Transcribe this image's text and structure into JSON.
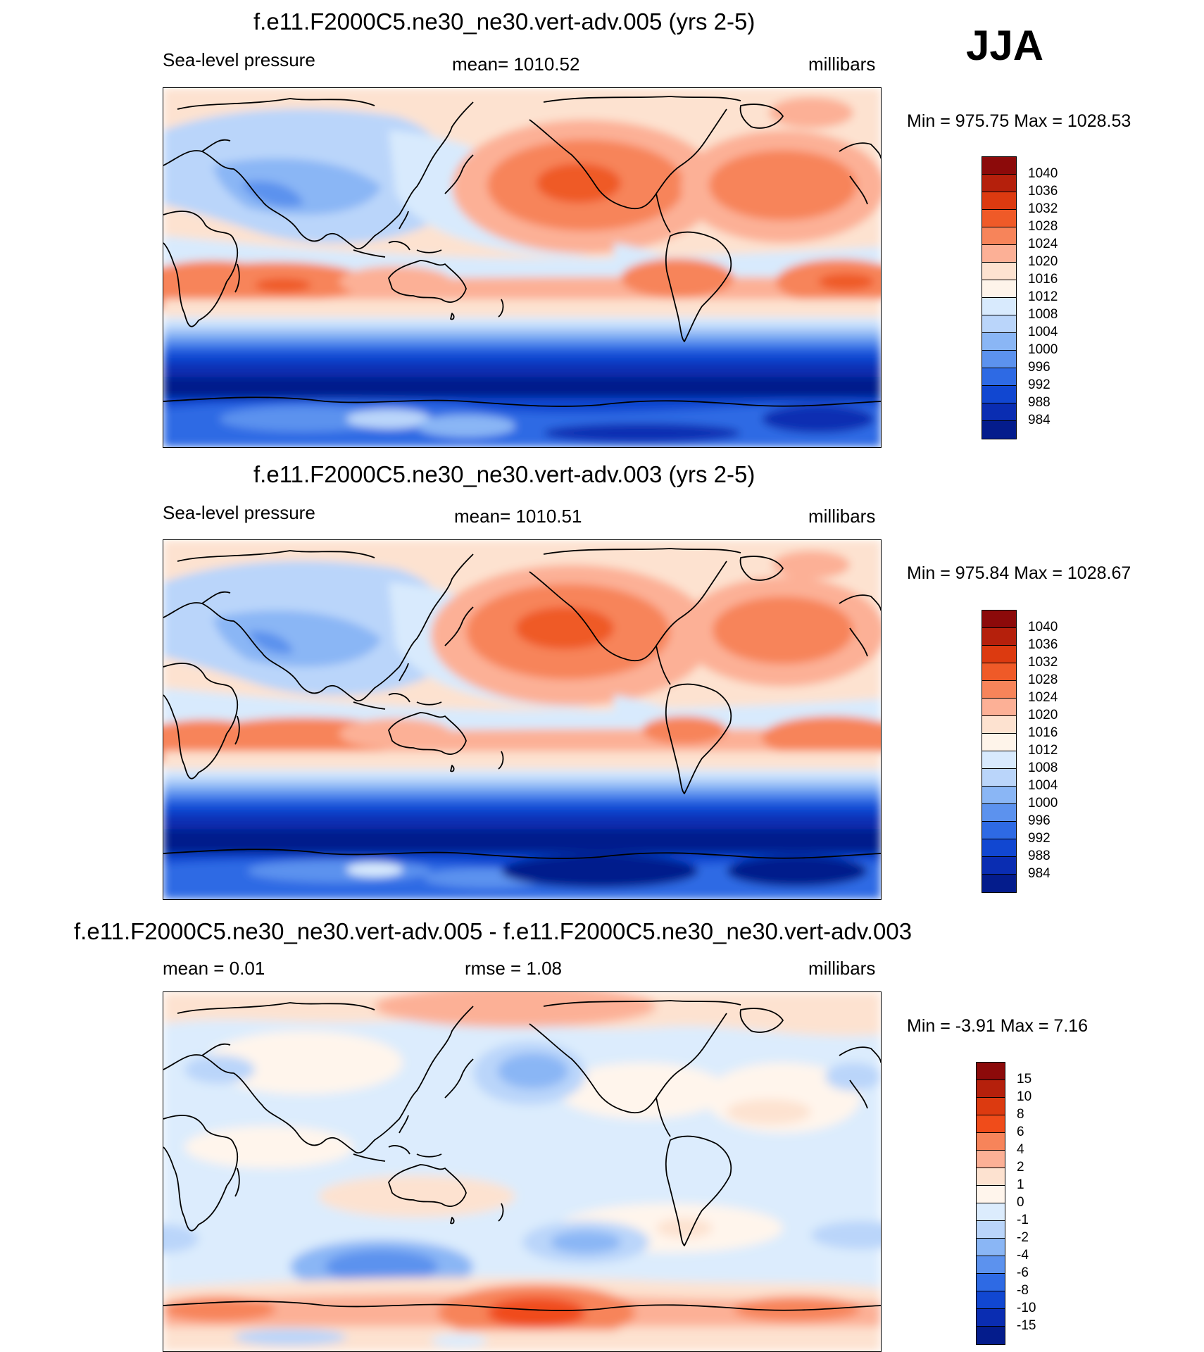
{
  "season": "JJA",
  "panels": [
    {
      "title": "f.e11.F2000C5.ne30_ne30.vert-adv.005 (yrs 2-5)",
      "left_label": "Sea-level pressure",
      "center_label": "mean= 1010.52",
      "right_label": "millibars",
      "minmax": "Min = 975.75 Max = 1028.53",
      "legend_labels": [
        "1040",
        "1036",
        "1032",
        "1028",
        "1024",
        "1020",
        "1016",
        "1012",
        "1008",
        "1004",
        "1000",
        "996",
        "992",
        "988",
        "984"
      ],
      "legend_colors": [
        "#8c0a0a",
        "#b5200c",
        "#dc3a10",
        "#ef5a28",
        "#f7845a",
        "#fcb096",
        "#fde2d0",
        "#fef4ea",
        "#d8eafd",
        "#bad5fa",
        "#8ab6f5",
        "#5c92ee",
        "#2e6ae4",
        "#1147d1",
        "#0a2db2",
        "#041c8c"
      ],
      "map_caption": "Global sea-level pressure, JJA, vert-adv.005"
    },
    {
      "title": "f.e11.F2000C5.ne30_ne30.vert-adv.003 (yrs 2-5)",
      "left_label": "Sea-level pressure",
      "center_label": "mean= 1010.51",
      "right_label": "millibars",
      "minmax": "Min = 975.84 Max = 1028.67",
      "legend_labels": [
        "1040",
        "1036",
        "1032",
        "1028",
        "1024",
        "1020",
        "1016",
        "1012",
        "1008",
        "1004",
        "1000",
        "996",
        "992",
        "988",
        "984"
      ],
      "legend_colors": [
        "#8c0a0a",
        "#b5200c",
        "#dc3a10",
        "#ef5a28",
        "#f7845a",
        "#fcb096",
        "#fde2d0",
        "#fef4ea",
        "#d8eafd",
        "#bad5fa",
        "#8ab6f5",
        "#5c92ee",
        "#2e6ae4",
        "#1147d1",
        "#0a2db2",
        "#041c8c"
      ],
      "map_caption": "Global sea-level pressure, JJA, vert-adv.003"
    },
    {
      "title": "f.e11.F2000C5.ne30_ne30.vert-adv.005 - f.e11.F2000C5.ne30_ne30.vert-adv.003",
      "left_label": "mean =   0.01",
      "center_label": "rmse =   1.08",
      "right_label": "millibars",
      "minmax": "Min =  -3.91 Max =   7.16",
      "legend_labels": [
        "15",
        "10",
        "8",
        "6",
        "4",
        "2",
        "1",
        "0",
        "-1",
        "-2",
        "-4",
        "-6",
        "-8",
        "-10",
        "-15"
      ],
      "legend_colors": [
        "#8c0a0a",
        "#b5200c",
        "#dc3a10",
        "#f04c1a",
        "#f7845a",
        "#fcb096",
        "#fde2d0",
        "#fff5ec",
        "#dcecfd",
        "#bad5fa",
        "#8ab6f5",
        "#5c92ee",
        "#2e6ae4",
        "#1147d1",
        "#0a2db2",
        "#041c8c"
      ],
      "map_caption": "Global sea-level pressure difference, JJA"
    }
  ],
  "colors": {
    "background": "#ffffff",
    "coastline": "#000000"
  }
}
